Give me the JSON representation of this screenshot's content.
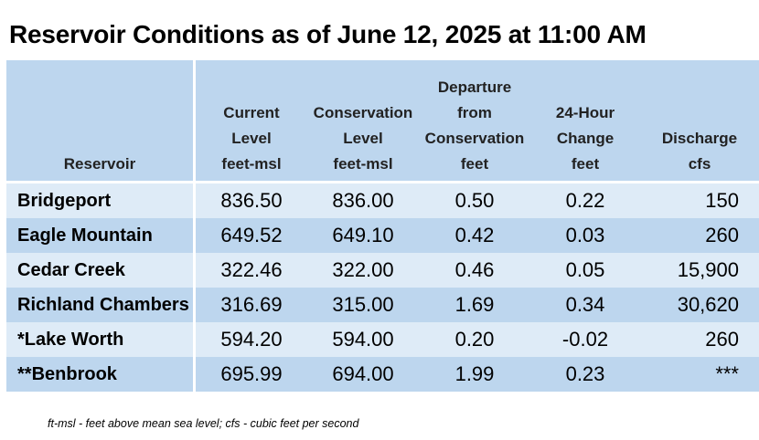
{
  "title": "Reservoir Conditions as of June 12, 2025 at 11:00 AM",
  "table": {
    "headers": [
      {
        "line1": "",
        "line2": "",
        "line3": "",
        "line4": "Reservoir"
      },
      {
        "line1": "",
        "line2": "Current",
        "line3": "Level",
        "line4": "feet-msl"
      },
      {
        "line1": "",
        "line2": "Conservation",
        "line3": "Level",
        "line4": "feet-msl"
      },
      {
        "line1": "Departure",
        "line2": "from",
        "line3": "Conservation",
        "line4": "feet"
      },
      {
        "line1": "",
        "line2": "24-Hour",
        "line3": "Change",
        "line4": "feet"
      },
      {
        "line1": "",
        "line2": "",
        "line3": "Discharge",
        "line4": "cfs"
      }
    ],
    "rows": [
      {
        "reservoir": "Bridgeport",
        "current": "836.50",
        "conservation": "836.00",
        "departure": "0.50",
        "change": "0.22",
        "discharge": "150"
      },
      {
        "reservoir": "Eagle Mountain",
        "current": "649.52",
        "conservation": "649.10",
        "departure": "0.42",
        "change": "0.03",
        "discharge": "260"
      },
      {
        "reservoir": "Cedar Creek",
        "current": "322.46",
        "conservation": "322.00",
        "departure": "0.46",
        "change": "0.05",
        "discharge": "15,900"
      },
      {
        "reservoir": "Richland Chambers",
        "current": "316.69",
        "conservation": "315.00",
        "departure": "1.69",
        "change": "0.34",
        "discharge": "30,620"
      },
      {
        "reservoir": "*Lake Worth",
        "current": "594.20",
        "conservation": "594.00",
        "departure": "0.20",
        "change": "-0.02",
        "discharge": "260"
      },
      {
        "reservoir": "**Benbrook",
        "current": "695.99",
        "conservation": "694.00",
        "departure": "1.99",
        "change": "0.23",
        "discharge": "***"
      }
    ]
  },
  "footnote": "ft-msl - feet above mean sea level; cfs - cubic feet per second",
  "colors": {
    "header_bg": "#bdd6ee",
    "row_light": "#deebf7",
    "row_dark": "#bdd6ee"
  }
}
